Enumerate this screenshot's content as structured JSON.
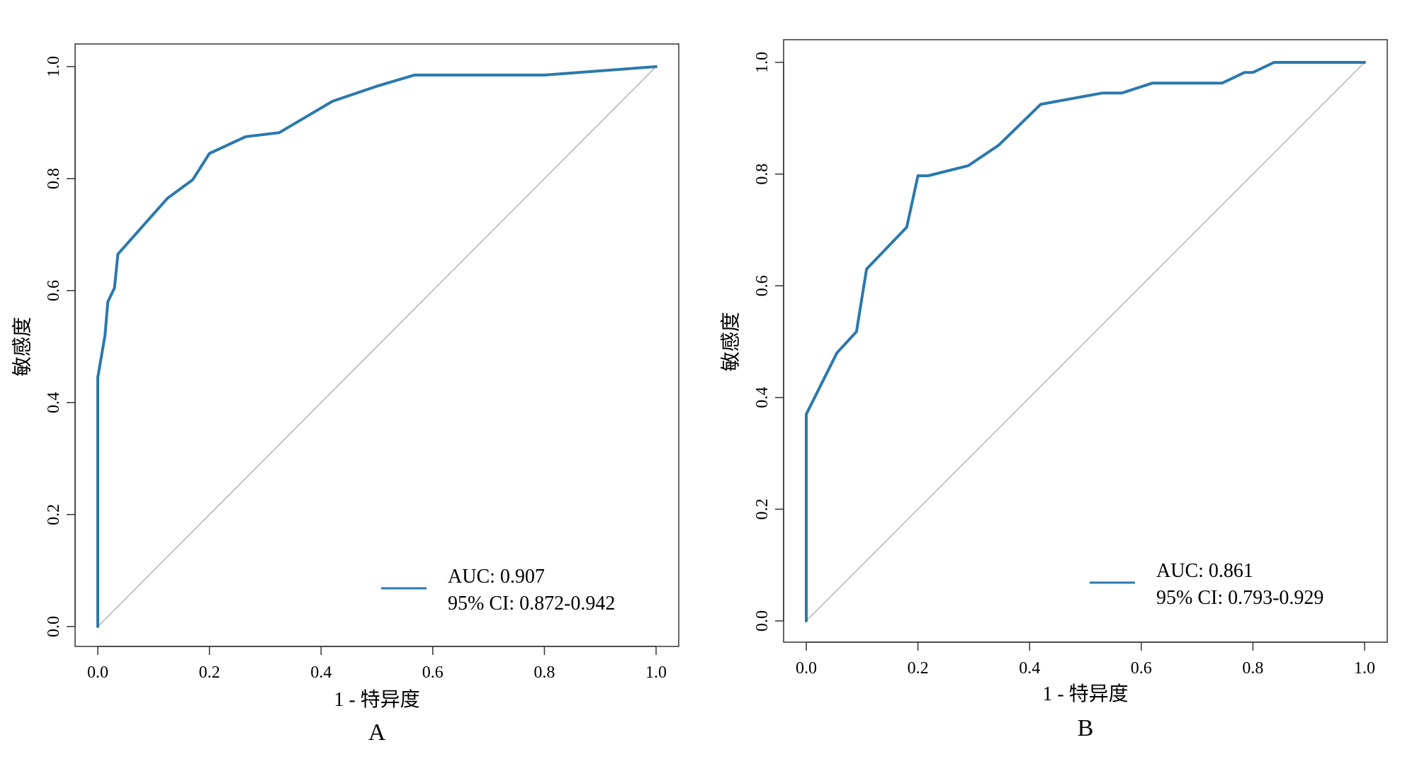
{
  "colors": {
    "roc_line": "#2a79ad",
    "diagonal": "#b4b4b4",
    "axis": "#333333",
    "background": "#ffffff"
  },
  "chart_data": [
    {
      "type": "line",
      "panel_label": "A",
      "xlabel": "1 - 特异度",
      "ylabel": "敏感度",
      "xlim": [
        0,
        1
      ],
      "ylim": [
        0,
        1
      ],
      "x_ticks": [
        "0.0",
        "0.2",
        "0.4",
        "0.6",
        "0.8",
        "1.0"
      ],
      "y_ticks": [
        "0.0",
        "0.2",
        "0.4",
        "0.6",
        "0.8",
        "1.0"
      ],
      "grid": false,
      "reference_line": "diagonal",
      "legend_position": "bottom-right",
      "legend": {
        "auc": "AUC: 0.907",
        "ci": "95% CI: 0.872-0.942"
      },
      "series": [
        {
          "x": [
            0,
            0,
            0.013,
            0.018,
            0.03,
            0.036,
            0.125,
            0.17,
            0.2,
            0.265,
            0.325,
            0.42,
            0.5,
            0.567,
            0.8,
            1.0
          ],
          "y": [
            0,
            0.445,
            0.52,
            0.58,
            0.605,
            0.665,
            0.765,
            0.798,
            0.845,
            0.875,
            0.882,
            0.938,
            0.965,
            0.985,
            0.985,
            1.0
          ]
        }
      ]
    },
    {
      "type": "line",
      "panel_label": "B",
      "xlabel": "1 - 特异度",
      "ylabel": "敏感度",
      "xlim": [
        0,
        1
      ],
      "ylim": [
        0,
        1
      ],
      "x_ticks": [
        "0.0",
        "0.2",
        "0.4",
        "0.6",
        "0.8",
        "1.0"
      ],
      "y_ticks": [
        "0.0",
        "0.2",
        "0.4",
        "0.6",
        "0.8",
        "1.0"
      ],
      "grid": false,
      "reference_line": "diagonal",
      "legend_position": "bottom-right",
      "legend": {
        "auc": "AUC: 0.861",
        "ci": "95% CI: 0.793-0.929"
      },
      "series": [
        {
          "x": [
            0,
            0,
            0.055,
            0.09,
            0.108,
            0.18,
            0.2,
            0.218,
            0.29,
            0.345,
            0.42,
            0.53,
            0.565,
            0.62,
            0.745,
            0.785,
            0.8,
            0.838,
            1.0
          ],
          "y": [
            0,
            0.37,
            0.48,
            0.518,
            0.63,
            0.705,
            0.797,
            0.797,
            0.815,
            0.852,
            0.925,
            0.945,
            0.945,
            0.963,
            0.963,
            0.982,
            0.982,
            1.0,
            1.0
          ]
        }
      ]
    }
  ]
}
